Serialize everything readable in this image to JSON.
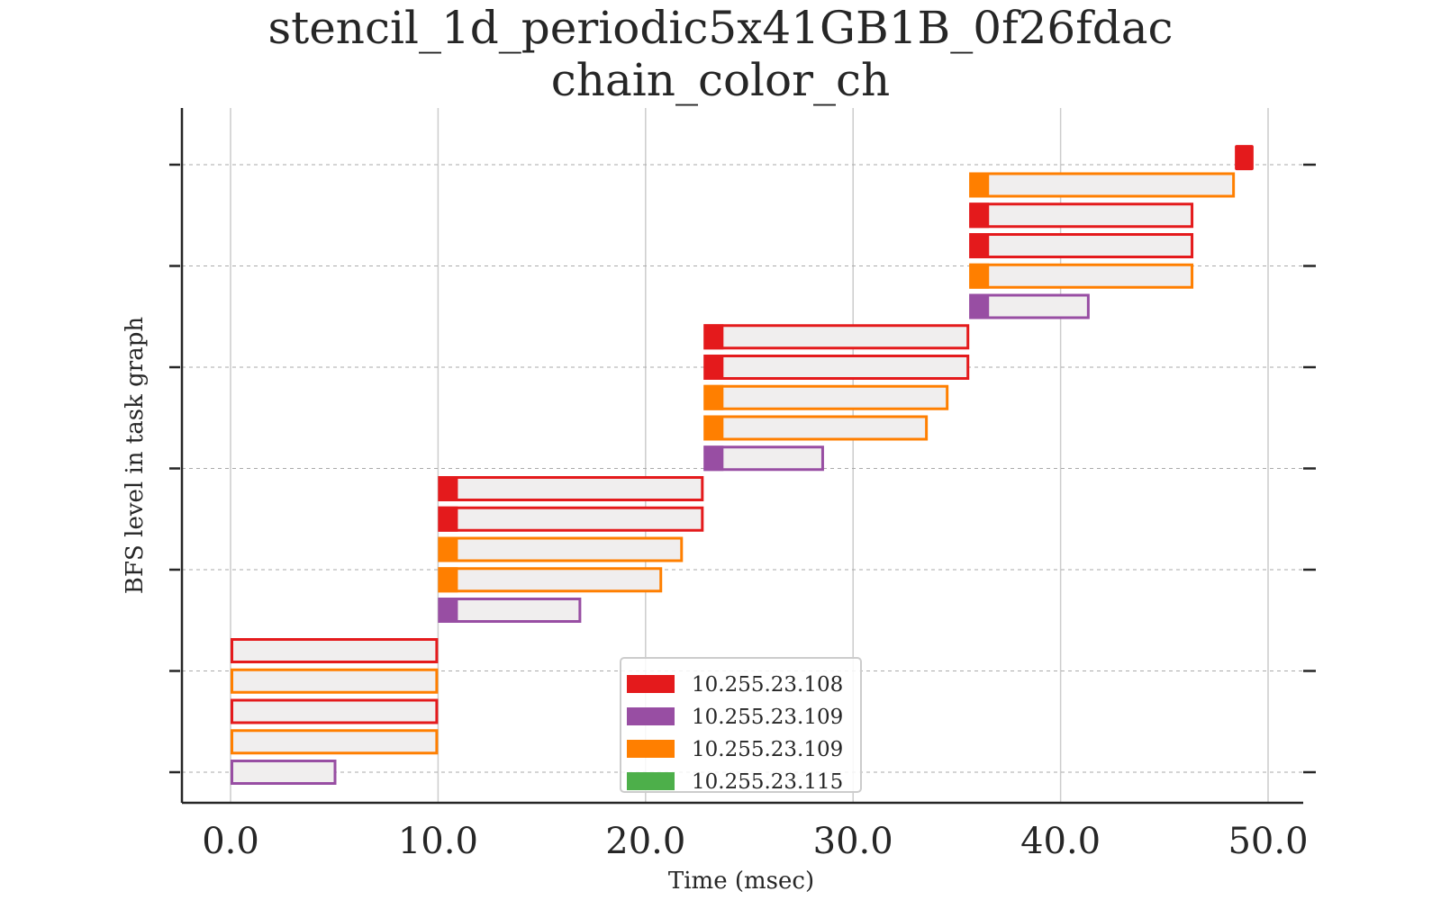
{
  "chart_data": {
    "type": "gantt",
    "title": "stencil_1d_periodic5x41GB1B_0f26fdac",
    "subtitle": "chain_color_ch",
    "xlabel": "Time (msec)",
    "ylabel": "BFS level in task graph",
    "xlim": [
      -2.4,
      51.6
    ],
    "x_ticks": [
      0,
      10,
      20,
      30,
      40,
      50
    ],
    "x_tick_labels": [
      "0.0",
      "10.0",
      "20.0",
      "30.0",
      "40.0",
      "50.0"
    ],
    "y_ticks": [
      0,
      1,
      2,
      3,
      4,
      5,
      6
    ],
    "y_tick_labels": [],
    "grid": {
      "vertical": true,
      "horizontal_dashed": true
    },
    "legend": {
      "location": "lower center",
      "entries": [
        {
          "label": "10.255.23.108",
          "color": "#e41a1c"
        },
        {
          "label": "10.255.23.109",
          "color": "#984ea3"
        },
        {
          "label": "10.255.23.109",
          "color": "#ff7f00"
        },
        {
          "label": "10.255.23.115",
          "color": "#4daf4a"
        }
      ]
    },
    "tasks": [
      {
        "start": 0.0,
        "end": 5.1,
        "y": 0.0,
        "color": "#984ea3"
      },
      {
        "start": 0.0,
        "end": 10.0,
        "y": 0.3,
        "color": "#ff7f00"
      },
      {
        "start": 0.0,
        "end": 10.0,
        "y": 0.6,
        "color": "#e41a1c"
      },
      {
        "start": 0.0,
        "end": 10.0,
        "y": 0.9,
        "color": "#ff7f00"
      },
      {
        "start": 0.0,
        "end": 10.0,
        "y": 1.2,
        "color": "#e41a1c"
      },
      {
        "start": 10.0,
        "end": 16.9,
        "y": 1.6,
        "color": "#984ea3"
      },
      {
        "start": 10.0,
        "end": 20.8,
        "y": 1.9,
        "color": "#ff7f00"
      },
      {
        "start": 10.0,
        "end": 21.8,
        "y": 2.2,
        "color": "#ff7f00"
      },
      {
        "start": 10.0,
        "end": 22.8,
        "y": 2.5,
        "color": "#e41a1c"
      },
      {
        "start": 10.0,
        "end": 22.8,
        "y": 2.8,
        "color": "#e41a1c"
      },
      {
        "start": 22.8,
        "end": 28.6,
        "y": 3.1,
        "color": "#984ea3"
      },
      {
        "start": 22.8,
        "end": 33.6,
        "y": 3.4,
        "color": "#ff7f00"
      },
      {
        "start": 22.8,
        "end": 34.6,
        "y": 3.7,
        "color": "#ff7f00"
      },
      {
        "start": 22.8,
        "end": 35.6,
        "y": 4.0,
        "color": "#e41a1c"
      },
      {
        "start": 22.8,
        "end": 35.6,
        "y": 4.3,
        "color": "#e41a1c"
      },
      {
        "start": 35.6,
        "end": 41.4,
        "y": 4.6,
        "color": "#984ea3"
      },
      {
        "start": 35.6,
        "end": 46.4,
        "y": 4.9,
        "color": "#ff7f00"
      },
      {
        "start": 35.6,
        "end": 46.4,
        "y": 5.2,
        "color": "#e41a1c"
      },
      {
        "start": 35.6,
        "end": 46.4,
        "y": 5.5,
        "color": "#e41a1c"
      },
      {
        "start": 35.6,
        "end": 48.4,
        "y": 5.8,
        "color": "#ff7f00"
      },
      {
        "start": 48.4,
        "end": 49.3,
        "y": 6.07,
        "color": "#e41a1c"
      }
    ]
  }
}
